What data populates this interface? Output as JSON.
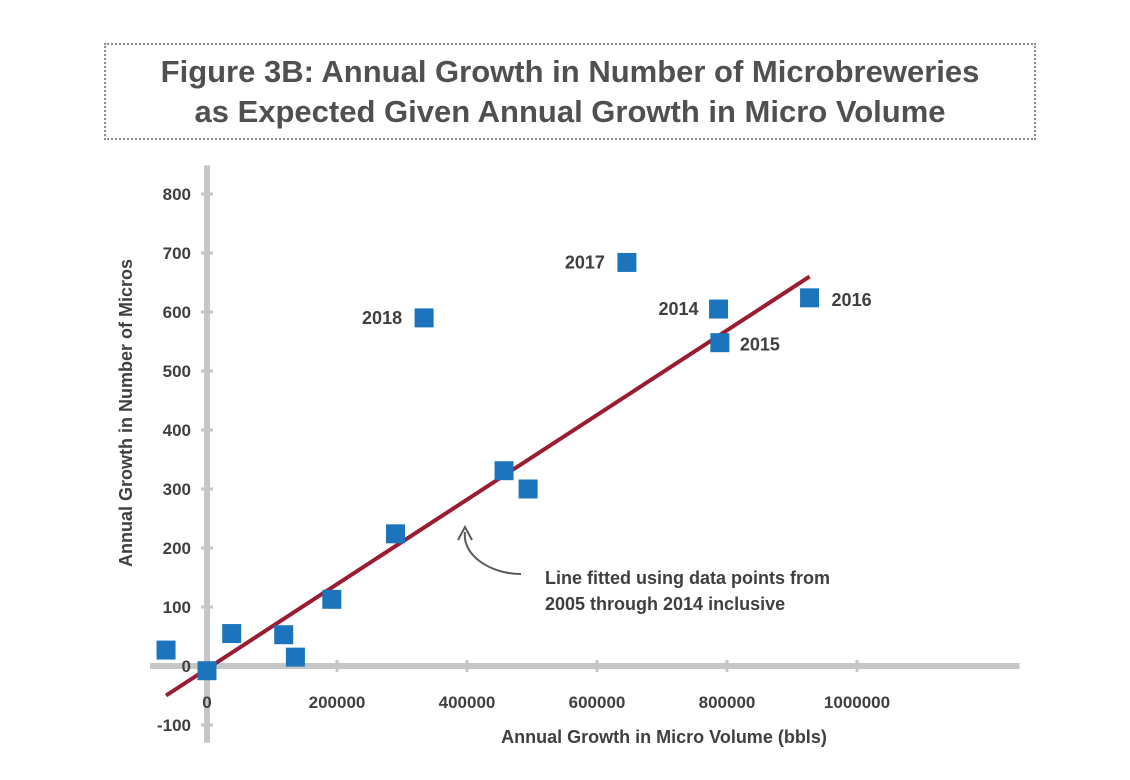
{
  "title": {
    "line1": "Figure 3B: Annual Growth in Number of Microbreweries",
    "line2": "as Expected Given Annual Growth in Micro Volume"
  },
  "chart_data": {
    "type": "scatter",
    "xlabel": "Annual Growth in Micro Volume (bbls)",
    "ylabel": "Annual Growth in Number of Micros",
    "xlim": [
      -80000,
      1250000
    ],
    "ylim": [
      -130,
      840
    ],
    "x_ticks": [
      0,
      200000,
      400000,
      600000,
      800000,
      1000000
    ],
    "x_tick_labels": [
      "0",
      "200000",
      "400000",
      "600000",
      "800000",
      "1000000"
    ],
    "y_ticks": [
      -100,
      0,
      100,
      200,
      300,
      400,
      500,
      600,
      700,
      800
    ],
    "y_tick_labels": [
      "-100",
      "0",
      "100",
      "200",
      "300",
      "400",
      "500",
      "600",
      "700",
      "800"
    ],
    "points": [
      {
        "x": -63000,
        "y": 27,
        "label": ""
      },
      {
        "x": 0,
        "y": -8,
        "label": ""
      },
      {
        "x": 38000,
        "y": 55,
        "label": ""
      },
      {
        "x": 118000,
        "y": 53,
        "label": ""
      },
      {
        "x": 136000,
        "y": 15,
        "label": ""
      },
      {
        "x": 192000,
        "y": 113,
        "label": ""
      },
      {
        "x": 290000,
        "y": 224,
        "label": ""
      },
      {
        "x": 334000,
        "y": 590,
        "label": "2018"
      },
      {
        "x": 457000,
        "y": 331,
        "label": ""
      },
      {
        "x": 494000,
        "y": 300,
        "label": ""
      },
      {
        "x": 646000,
        "y": 684,
        "label": "2017"
      },
      {
        "x": 787000,
        "y": 605,
        "label": "2014"
      },
      {
        "x": 789000,
        "y": 548,
        "label": "2015"
      },
      {
        "x": 927000,
        "y": 624,
        "label": "2016"
      }
    ],
    "fit_line": {
      "x": [
        -63000,
        927000
      ],
      "y": [
        -50,
        660
      ]
    },
    "annotation": {
      "lines": [
        "Line fitted using data points from",
        "2005 through 2014 inclusive"
      ]
    },
    "colors": {
      "points": "#1c75bc",
      "fit_line": "#9b1b30",
      "axes": "#c6c6c6",
      "arrow": "#5a5a5a"
    }
  }
}
